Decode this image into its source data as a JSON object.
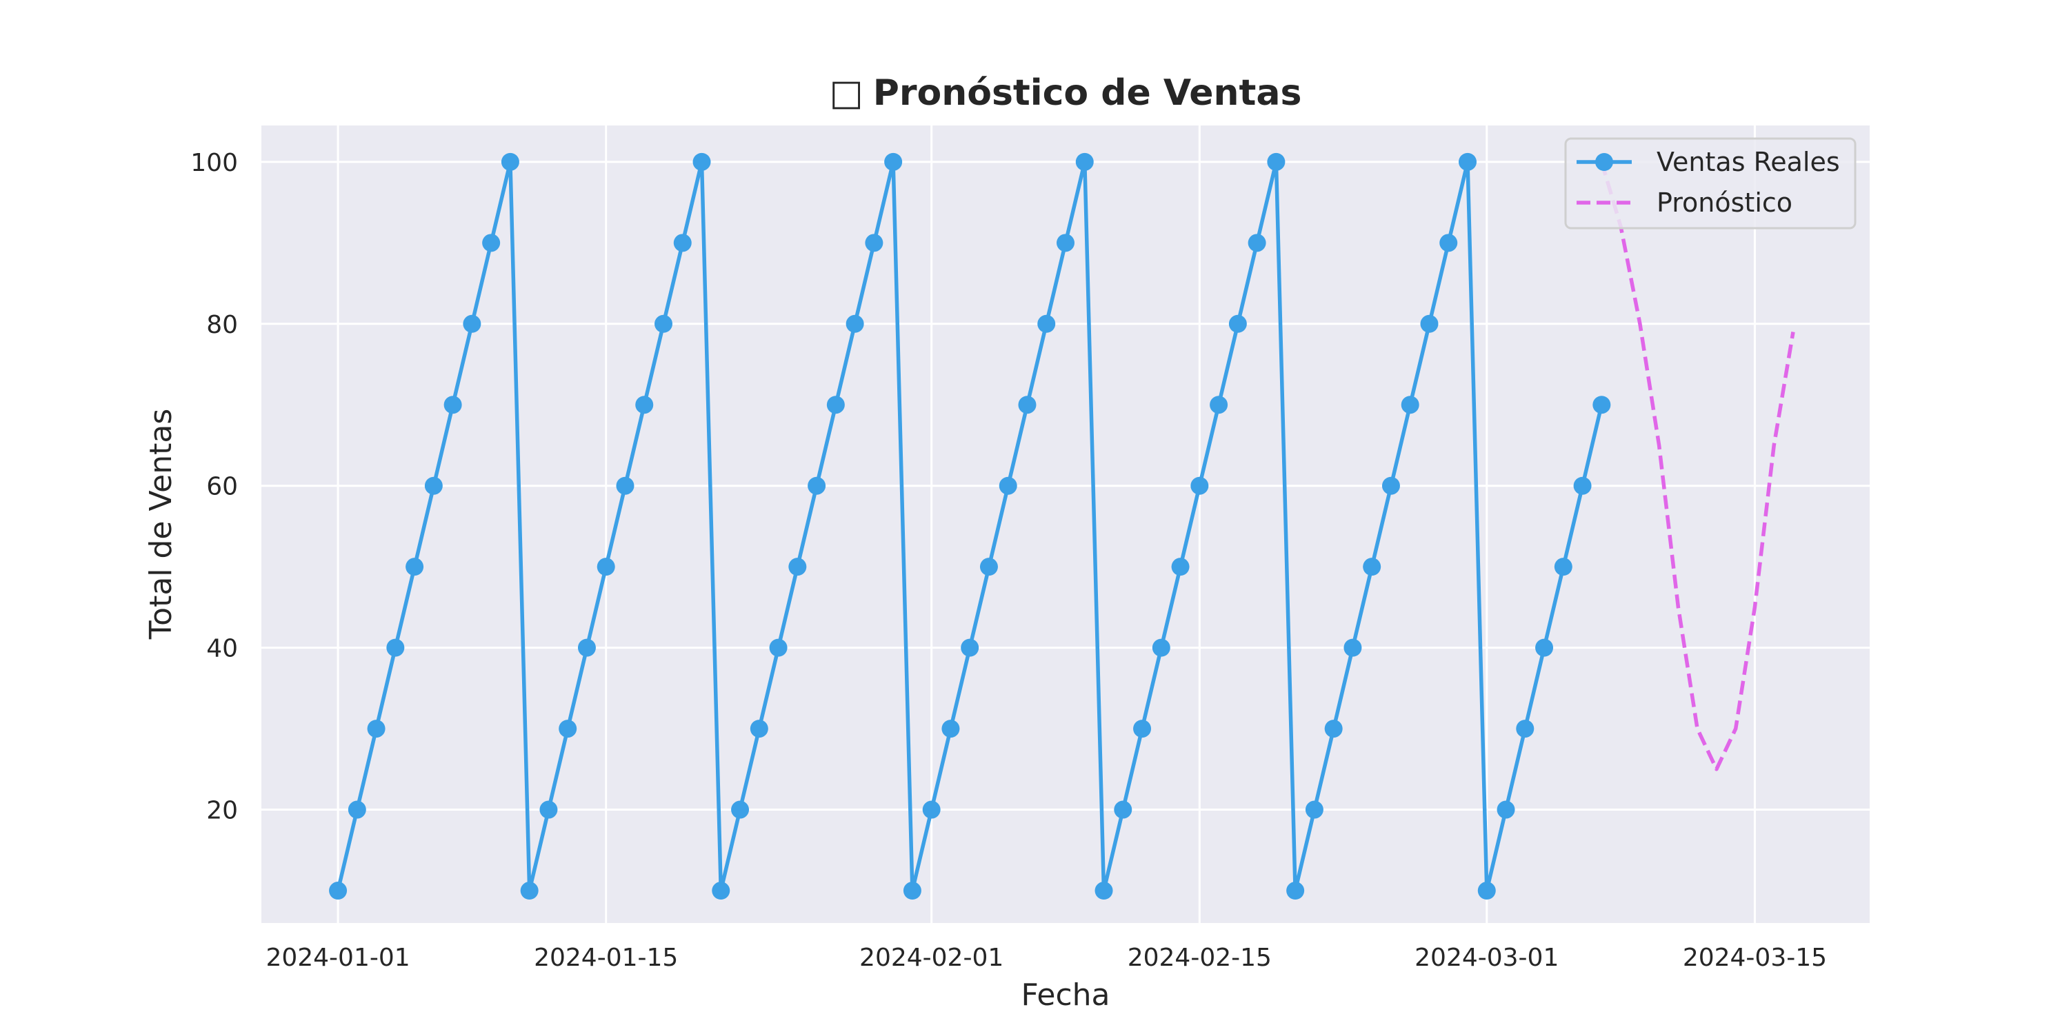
{
  "chart_data": {
    "type": "line",
    "title": "Pronóstico de Ventas",
    "title_icon": "□",
    "xlabel": "Fecha",
    "ylabel": "Total de Ventas",
    "x_ticks": [
      "2024-01-01",
      "2024-01-15",
      "2024-02-01",
      "2024-02-15",
      "2024-03-01",
      "2024-03-15"
    ],
    "y_ticks": [
      20,
      40,
      60,
      80,
      100
    ],
    "xlim": [
      "2023-12-28",
      "2024-03-21"
    ],
    "ylim": [
      6,
      104.5
    ],
    "grid": true,
    "legend_position": "top-right",
    "background": "#eaeaf2",
    "series": [
      {
        "name": "Ventas Reales",
        "color": "#3ca0e6",
        "style": "solid",
        "marker": "circle",
        "start_date": "2024-01-01",
        "values": [
          10,
          20,
          30,
          40,
          50,
          60,
          70,
          80,
          90,
          100,
          10,
          20,
          30,
          40,
          50,
          60,
          70,
          80,
          90,
          100,
          10,
          20,
          30,
          40,
          50,
          60,
          70,
          80,
          90,
          100,
          10,
          20,
          30,
          40,
          50,
          60,
          70,
          80,
          90,
          100,
          10,
          20,
          30,
          40,
          50,
          60,
          70,
          80,
          90,
          100,
          10,
          20,
          30,
          40,
          50,
          60,
          70,
          80,
          90,
          100,
          10,
          20,
          30,
          40,
          50,
          60,
          70
        ]
      },
      {
        "name": "Pronóstico",
        "color": "#e066e8",
        "style": "dashed",
        "marker": "none",
        "start_date": "2024-03-07",
        "values": [
          100,
          92,
          80,
          65,
          45,
          30,
          25,
          30,
          45,
          65,
          79
        ]
      }
    ]
  }
}
